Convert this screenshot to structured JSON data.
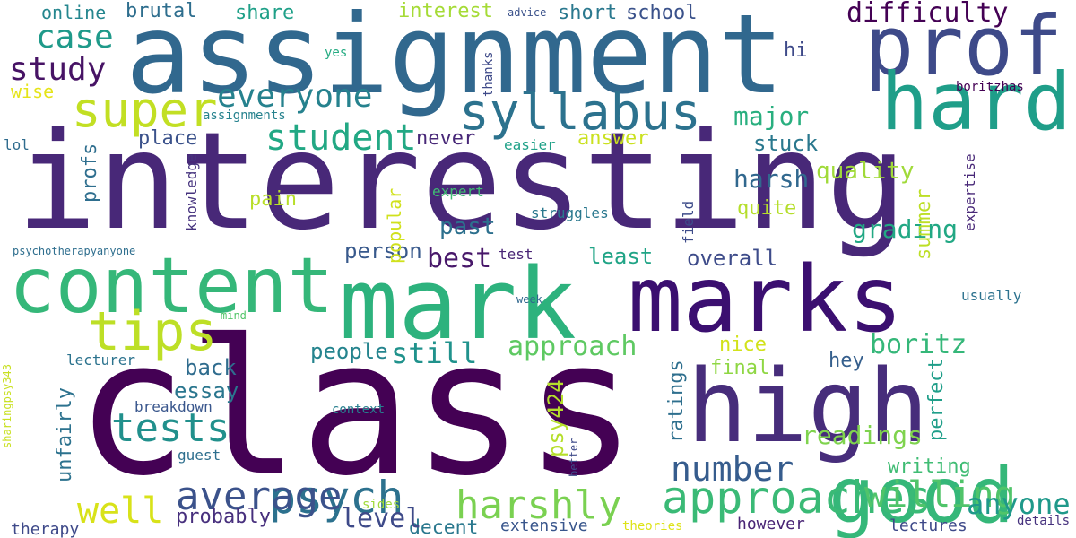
{
  "words": [
    {
      "text": "interesting",
      "color": "#482878"
    },
    {
      "text": "class",
      "color": "#440154"
    },
    {
      "text": "assignment",
      "color": "#31688e"
    },
    {
      "text": "mark",
      "color": "#2db27d"
    },
    {
      "text": "marks",
      "color": "#3b0f70"
    },
    {
      "text": "content",
      "color": "#35b779"
    },
    {
      "text": "high",
      "color": "#472d7b"
    },
    {
      "text": "prof",
      "color": "#3e4a89"
    },
    {
      "text": "hard",
      "color": "#1f9e89"
    },
    {
      "text": "good",
      "color": "#35b779"
    },
    {
      "text": "syllabus",
      "color": "#2c728e"
    },
    {
      "text": "approaches",
      "color": "#3aba76"
    },
    {
      "text": "therapy",
      "color": "#3e4989"
    },
    {
      "text": "tips",
      "color": "#bddf26"
    },
    {
      "text": "psych",
      "color": "#2c718e"
    },
    {
      "text": "super",
      "color": "#c2df23"
    },
    {
      "text": "tests",
      "color": "#21908c"
    },
    {
      "text": "average",
      "color": "#3b528b"
    },
    {
      "text": "student",
      "color": "#22a884"
    },
    {
      "text": "everyone",
      "color": "#26828e"
    },
    {
      "text": "study",
      "color": "#471365"
    },
    {
      "text": "case",
      "color": "#1f9a8a"
    },
    {
      "text": "difficulty",
      "color": "#440154"
    },
    {
      "text": "harshly",
      "color": "#7ad151"
    },
    {
      "text": "number",
      "color": "#365c8d"
    },
    {
      "text": "decent",
      "color": "#2a788e"
    },
    {
      "text": "willing",
      "color": "#50c46a"
    },
    {
      "text": "anyone",
      "color": "#1f998a"
    },
    {
      "text": "well",
      "color": "#d8e219"
    },
    {
      "text": "approach",
      "color": "#5ec962"
    },
    {
      "text": "level",
      "color": "#3e4a89"
    },
    {
      "text": "boritz",
      "color": "#35b779"
    },
    {
      "text": "harsh",
      "color": "#31688e"
    },
    {
      "text": "still",
      "color": "#20928c"
    },
    {
      "text": "best",
      "color": "#48186a"
    },
    {
      "text": "grading",
      "color": "#22a884"
    },
    {
      "text": "readings",
      "color": "#7fd34e"
    },
    {
      "text": "quality",
      "color": "#a0da39"
    },
    {
      "text": "major",
      "color": "#29af7f"
    },
    {
      "text": "stuck",
      "color": "#2a788e"
    },
    {
      "text": "essay",
      "color": "#2a768e"
    },
    {
      "text": "back",
      "color": "#2f6c8e"
    },
    {
      "text": "people",
      "color": "#25848e"
    },
    {
      "text": "overall",
      "color": "#3e4c8a"
    },
    {
      "text": "least",
      "color": "#20a486"
    },
    {
      "text": "person",
      "color": "#38598c"
    },
    {
      "text": "past",
      "color": "#2d708e"
    },
    {
      "text": "quite",
      "color": "#b5de2b"
    },
    {
      "text": "pain",
      "color": "#b8de29"
    },
    {
      "text": "place",
      "color": "#3b528b"
    },
    {
      "text": "never",
      "color": "#482878"
    },
    {
      "text": "answer",
      "color": "#cae11f"
    },
    {
      "text": "profs",
      "color": "#2e6e8e"
    },
    {
      "text": "writing",
      "color": "#3fbc73"
    },
    {
      "text": "perfect",
      "color": "#1f9e89"
    },
    {
      "text": "final",
      "color": "#8fd744"
    },
    {
      "text": "hey",
      "color": "#355f8d"
    },
    {
      "text": "nice",
      "color": "#d2e21b"
    },
    {
      "text": "ratings",
      "color": "#2e6f8e"
    },
    {
      "text": "psy424",
      "color": "#b5de2b"
    },
    {
      "text": "probably",
      "color": "#472f7d"
    },
    {
      "text": "unfairly",
      "color": "#2c728e"
    },
    {
      "text": "summer",
      "color": "#bddf26"
    },
    {
      "text": "popular",
      "color": "#d0e11c"
    },
    {
      "text": "brutal",
      "color": "#2e6e8e"
    },
    {
      "text": "share",
      "color": "#1fa088"
    },
    {
      "text": "online",
      "color": "#24868e"
    },
    {
      "text": "interest",
      "color": "#a5db36"
    },
    {
      "text": "short",
      "color": "#2a788e"
    },
    {
      "text": "school",
      "color": "#3b528b"
    },
    {
      "text": "wise",
      "color": "#e5e419"
    },
    {
      "text": "hi",
      "color": "#3e4a89"
    },
    {
      "text": "usually",
      "color": "#2c728e"
    },
    {
      "text": "breakdown",
      "color": "#39568c"
    },
    {
      "text": "lectures",
      "color": "#3e4989"
    },
    {
      "text": "however",
      "color": "#482475"
    },
    {
      "text": "extensive",
      "color": "#39568c"
    },
    {
      "text": "struggles",
      "color": "#2a788e"
    },
    {
      "text": "knowledge",
      "color": "#46337e"
    },
    {
      "text": "guest",
      "color": "#2e6f8e"
    },
    {
      "text": "lecturer",
      "color": "#2c738e"
    },
    {
      "text": "expert",
      "color": "#3fbc73"
    },
    {
      "text": "easier",
      "color": "#1fa188"
    },
    {
      "text": "field",
      "color": "#3e4c8a"
    },
    {
      "text": "expertise",
      "color": "#482878"
    },
    {
      "text": "lol",
      "color": "#2f6c8e"
    },
    {
      "text": "test",
      "color": "#482475"
    },
    {
      "text": "context",
      "color": "#277f8e"
    },
    {
      "text": "assignments",
      "color": "#26828e"
    },
    {
      "text": "advice",
      "color": "#3b528b"
    },
    {
      "text": "yes",
      "color": "#25ab82"
    },
    {
      "text": "thanks",
      "color": "#3e4a89"
    },
    {
      "text": "boritzhas",
      "color": "#440154"
    },
    {
      "text": "psychotherapyanyone",
      "color": "#2e6e8e"
    },
    {
      "text": "mind",
      "color": "#52c569"
    },
    {
      "text": "week",
      "color": "#31688e"
    },
    {
      "text": "sharingpsy343",
      "color": "#c8e020"
    },
    {
      "text": "better",
      "color": "#3e4a89"
    },
    {
      "text": "sides",
      "color": "#a0da39"
    },
    {
      "text": "theories",
      "color": "#dde318"
    },
    {
      "text": "details",
      "color": "#46327e"
    }
  ]
}
